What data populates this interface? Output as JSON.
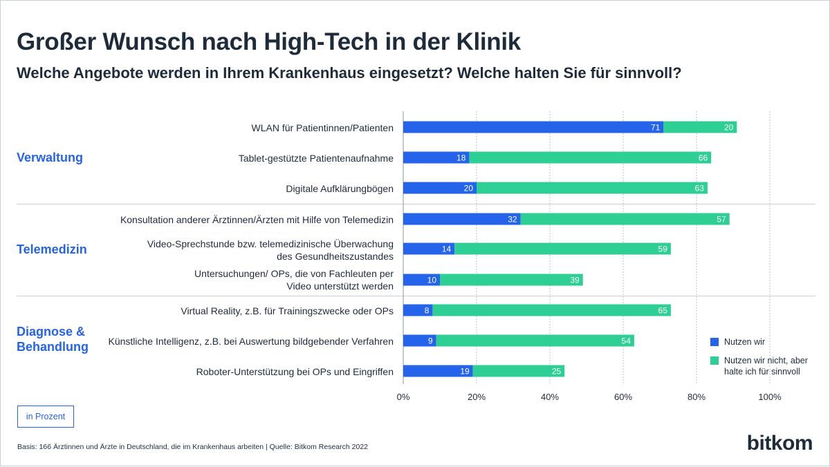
{
  "header": {
    "title": "Großer Wunsch nach High-Tech in der Klinik",
    "subtitle": "Welche Angebote werden in Ihrem Krankenhaus eingesetzt? Welche halten Sie für sinnvoll?"
  },
  "groups": [
    {
      "label": "Verwaltung"
    },
    {
      "label": "Telemedizin"
    },
    {
      "label": "Diagnose &\nBehandlung"
    }
  ],
  "legend": [
    {
      "label": "Nutzen wir"
    },
    {
      "label": "Nutzen wir nicht, aber halte ich für sinnvoll"
    }
  ],
  "unit_label": "in Prozent",
  "footer": "Basis: 166 Ärztinnen und Ärzte in Deutschland, die im Krankenhaus arbeiten | Quelle: Bitkom Research 2022",
  "logo": "bitkom",
  "colors": {
    "nutzen": "#2563eb",
    "sinnvoll": "#2ecf95",
    "text": "#1d2b3a",
    "grid": "#c9cfd6"
  },
  "chart_data": {
    "type": "bar",
    "orientation": "horizontal",
    "stacked": true,
    "categories": [
      "WLAN für Patientinnen/Patienten",
      "Tablet-gestützte Patientenaufnahme",
      "Digitale Aufklärungbögen",
      "Konsultation anderer Ärztinnen/Ärzten mit Hilfe von Telemedizin",
      "Video-Sprechstunde bzw. telemedizinische Überwachung\ndes Gesundheitszustandes",
      "Untersuchungen/ OPs, die von Fachleuten per\nVideo unterstützt werden",
      "Virtual Reality, z.B. für Trainingszwecke oder OPs",
      "Künstliche Intelligenz, z.B. bei Auswertung bildgebender Verfahren",
      "Roboter-Unterstützung bei OPs und Eingriffen"
    ],
    "series": [
      {
        "name": "Nutzen wir",
        "values": [
          71,
          18,
          20,
          32,
          14,
          10,
          8,
          9,
          19
        ]
      },
      {
        "name": "Nutzen wir nicht, aber halte ich für sinnvoll",
        "values": [
          20,
          66,
          63,
          57,
          59,
          39,
          65,
          54,
          25
        ]
      }
    ],
    "xlim": [
      0,
      100
    ],
    "xticks": [
      "0%",
      "20%",
      "40%",
      "60%",
      "80%",
      "100%"
    ],
    "grid": true,
    "legend_position": "right"
  }
}
